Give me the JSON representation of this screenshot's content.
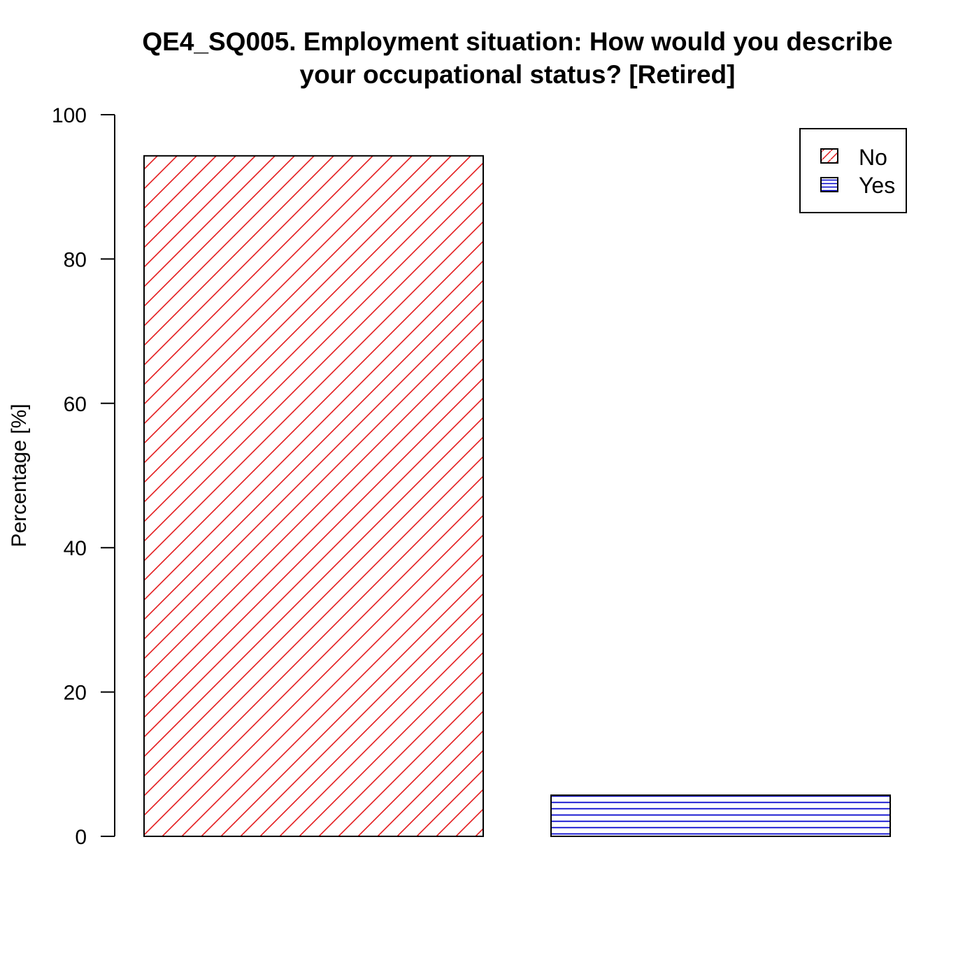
{
  "chart_data": {
    "type": "bar",
    "title_lines": [
      "QE4_SQ005. Employment situation: How would you describe",
      "your occupational status?  [Retired]"
    ],
    "xlabel": "",
    "ylabel": "Percentage [%]",
    "ylim": [
      0,
      100
    ],
    "yticks": [
      0,
      20,
      40,
      60,
      80,
      100
    ],
    "categories": [
      "No",
      "Yes"
    ],
    "values": [
      94.3,
      5.7
    ],
    "colors": [
      "#e31a1c",
      "#0000cc"
    ],
    "patterns": [
      "diagonal",
      "horizontal"
    ],
    "legend": {
      "position": "top-right",
      "entries": [
        "No",
        "Yes"
      ]
    },
    "grid": false
  }
}
